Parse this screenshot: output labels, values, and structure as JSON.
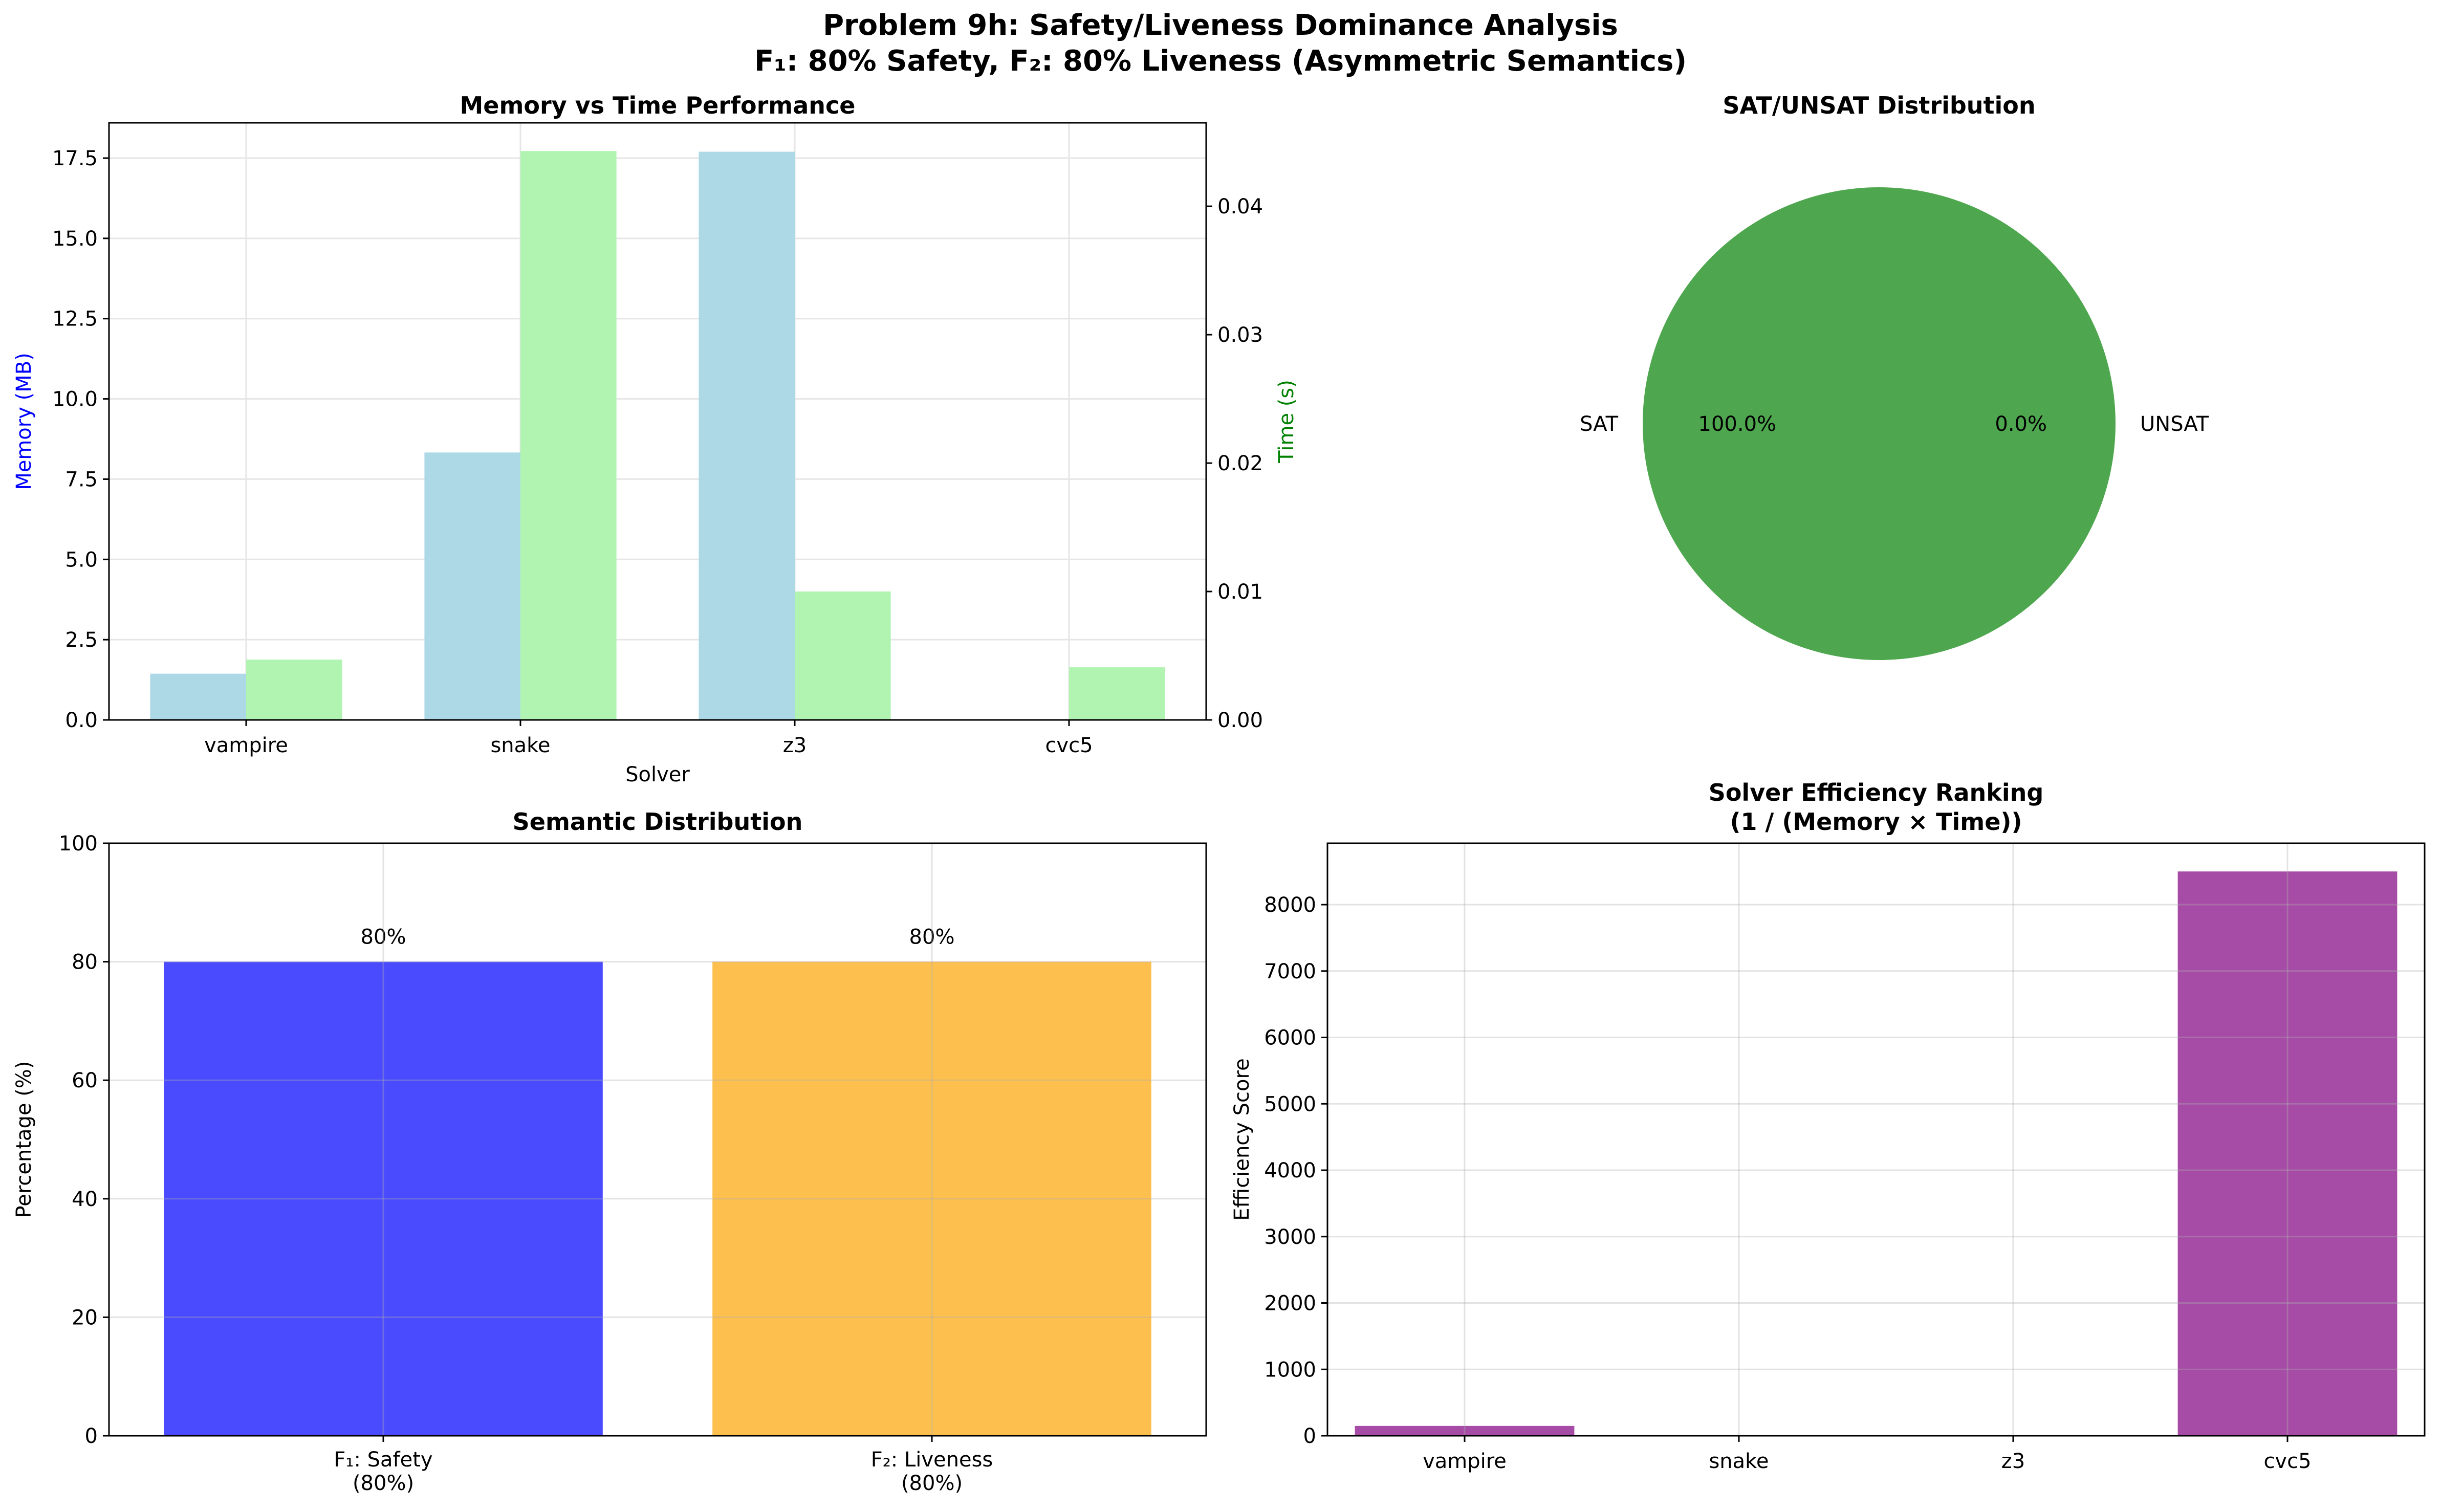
{
  "figure": {
    "title_line1": "Problem 9h: Safety/Liveness Dominance Analysis",
    "title_line2": "F₁: 80% Safety, F₂: 80% Liveness (Asymmetric Semantics)"
  },
  "colors": {
    "memory_bar": "#add8e6",
    "time_bar": "#b1f3b0",
    "memory_label": "#0000ff",
    "time_label": "#008000",
    "pie_sat": "#4ea74e",
    "safety_bar": "#4a4aff",
    "liveness_bar": "#fdbf4e",
    "efficiency_bar": "#a64ca6",
    "grid": "#e6e6e6"
  },
  "chart_data": [
    {
      "type": "bar",
      "title": "Memory vs Time Performance",
      "xlabel": "Solver",
      "ylabel": "Memory (MB)",
      "ylabel_right": "Time (s)",
      "categories": [
        "vampire",
        "snake",
        "z3",
        "cvc5"
      ],
      "series": [
        {
          "name": "Memory (MB)",
          "axis": "left",
          "values": [
            1.44,
            8.33,
            17.7,
            0.0
          ]
        },
        {
          "name": "Time (s)",
          "axis": "right",
          "values": [
            0.0047,
            0.0443,
            0.01,
            0.0041
          ]
        }
      ],
      "ylim": [
        0,
        18.6
      ],
      "yticks": [
        "0.0",
        "2.5",
        "5.0",
        "7.5",
        "10.0",
        "12.5",
        "15.0",
        "17.5"
      ],
      "ylim_right": [
        0,
        0.0465
      ],
      "yticks_right": [
        "0.00",
        "0.01",
        "0.02",
        "0.03",
        "0.04"
      ],
      "grid": true
    },
    {
      "type": "pie",
      "title": "SAT/UNSAT Distribution",
      "labels": [
        "SAT",
        "UNSAT"
      ],
      "values": [
        100.0,
        0.0
      ],
      "pct_labels": [
        "100.0%",
        "0.0%"
      ]
    },
    {
      "type": "bar",
      "title": "Semantic Distribution",
      "ylabel": "Percentage (%)",
      "categories": [
        "F₁: Safety\n(80%)",
        "F₂: Liveness\n(80%)"
      ],
      "values": [
        80,
        80
      ],
      "data_labels": [
        "80%",
        "80%"
      ],
      "ylim": [
        0,
        100
      ],
      "yticks": [
        "0",
        "20",
        "40",
        "60",
        "80",
        "100"
      ],
      "grid": true
    },
    {
      "type": "bar",
      "title": "Solver Efficiency Ranking\n(1 / (Memory × Time))",
      "ylabel": "Efficiency Score",
      "categories": [
        "vampire",
        "snake",
        "z3",
        "cvc5"
      ],
      "values": [
        148,
        2.7,
        5.6,
        8500
      ],
      "ylim": [
        0,
        8925
      ],
      "yticks": [
        "0",
        "1000",
        "2000",
        "3000",
        "4000",
        "5000",
        "6000",
        "7000",
        "8000"
      ],
      "grid": true
    }
  ]
}
